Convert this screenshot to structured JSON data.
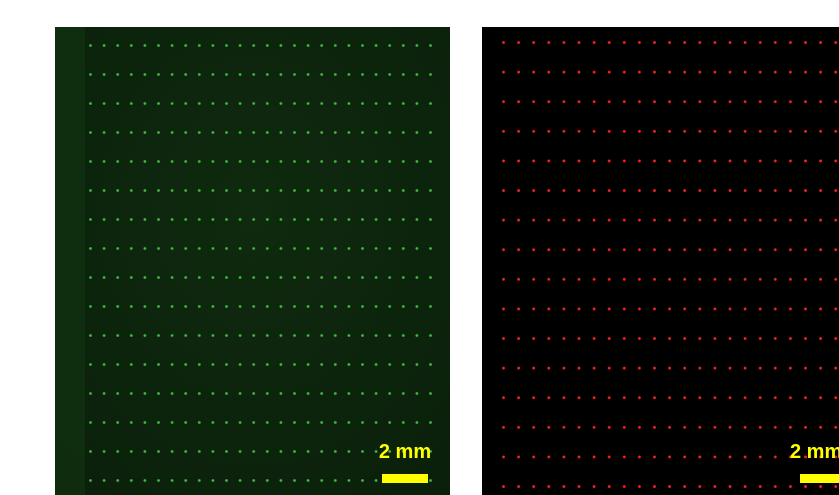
{
  "panels": [
    {
      "scale_label": "2 mm"
    },
    {
      "scale_label": "2 mm"
    }
  ]
}
